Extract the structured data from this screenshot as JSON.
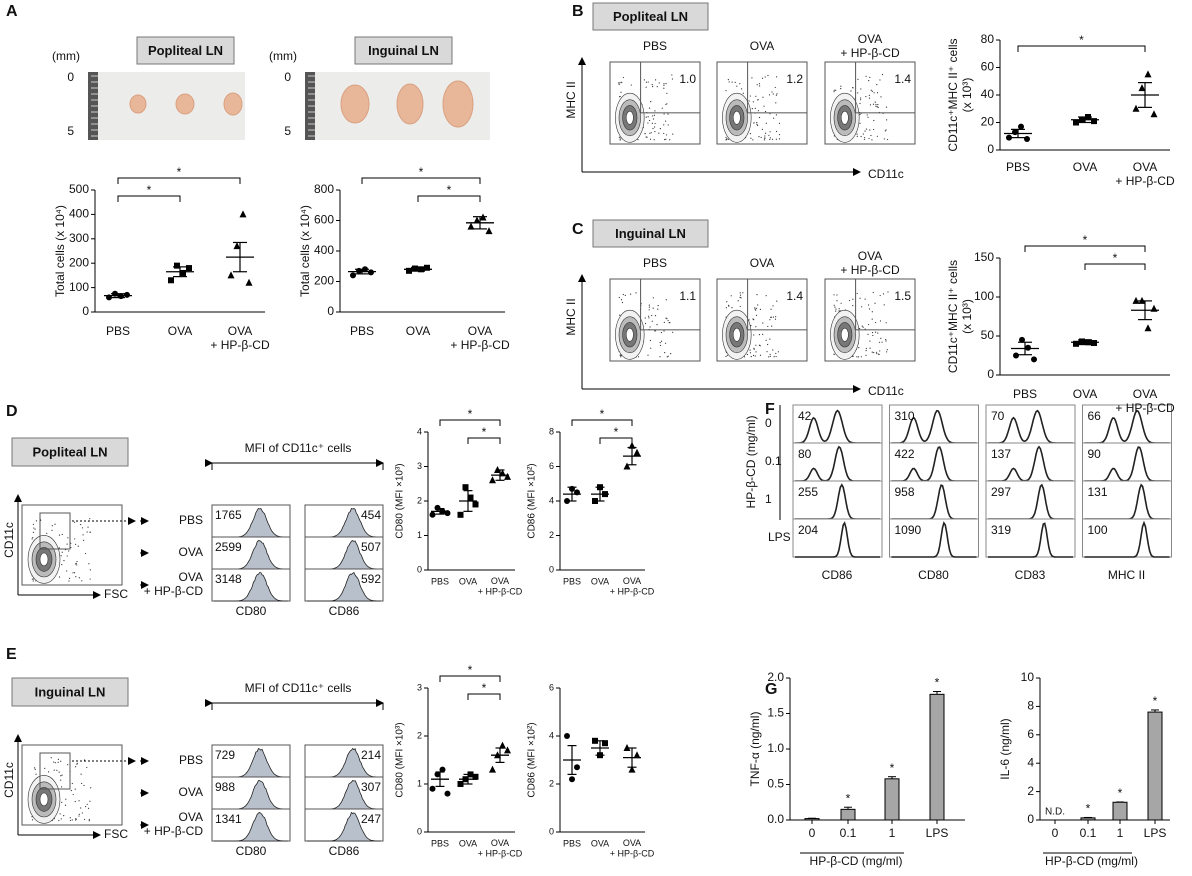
{
  "panel_labels": [
    "A",
    "B",
    "C",
    "D",
    "E",
    "F",
    "G"
  ],
  "A": {
    "images": [
      {
        "title": "Popliteal LN",
        "unit": "(mm)",
        "scale": [
          "0",
          "5"
        ]
      },
      {
        "title": "Inguinal LN",
        "unit": "(mm)",
        "scale": [
          "0",
          "5"
        ]
      }
    ]
  },
  "B": {
    "title": "Popliteal LN",
    "ylabel": "MHC II",
    "xlabel": "CD11c",
    "plots": [
      {
        "name": "PBS",
        "value": "1.0"
      },
      {
        "name": "OVA",
        "value": "1.2"
      },
      {
        "name": "OVA\n+ HP-β-CD",
        "value": "1.4"
      }
    ]
  },
  "C": {
    "title": "Inguinal LN",
    "ylabel": "MHC II",
    "xlabel": "CD11c",
    "plots": [
      {
        "name": "PBS",
        "value": "1.1"
      },
      {
        "name": "OVA",
        "value": "1.4"
      },
      {
        "name": "OVA\n+ HP-β-CD",
        "value": "1.5"
      }
    ]
  },
  "D": {
    "title": "Popliteal LN",
    "flow_axes": [
      "CD11c",
      "FSC"
    ],
    "mfi_title": "MFI of CD11c⁺ cells",
    "rows": [
      "PBS",
      "OVA",
      "OVA\n+ HP-β-CD"
    ],
    "columns": [
      {
        "name": "CD80",
        "values": [
          1765,
          2599,
          3148
        ]
      },
      {
        "name": "CD86",
        "values": [
          454,
          507,
          592
        ]
      }
    ]
  },
  "E": {
    "title": "Inguinal LN",
    "flow_axes": [
      "CD11c",
      "FSC"
    ],
    "mfi_title": "MFI of CD11c⁺ cells",
    "rows": [
      "PBS",
      "OVA",
      "OVA\n+ HP-β-CD"
    ],
    "columns": [
      {
        "name": "CD80",
        "values": [
          729,
          988,
          1341
        ]
      },
      {
        "name": "CD86",
        "values": [
          214,
          307,
          247
        ]
      }
    ]
  },
  "F": {
    "ylabel": "HP-β-CD (mg/ml)",
    "rows": [
      "0",
      "0.1",
      "1",
      "LPS"
    ],
    "columns": [
      {
        "name": "CD86",
        "values": [
          42,
          80,
          255,
          204
        ]
      },
      {
        "name": "CD80",
        "values": [
          310,
          422,
          958,
          1090
        ]
      },
      {
        "name": "CD83",
        "values": [
          70,
          137,
          297,
          319
        ]
      },
      {
        "name": "MHC II",
        "values": [
          66,
          90,
          131,
          100
        ]
      }
    ]
  },
  "chart_data": [
    {
      "type": "dot",
      "ylabel": "Total cells (x 10⁴)",
      "categories": [
        "PBS",
        "OVA",
        "OVA\n+ HP-β-CD"
      ],
      "markers": [
        "circle",
        "square",
        "triangle"
      ],
      "groups": [
        {
          "points": [
            60,
            75,
            65,
            70
          ],
          "mean": 67,
          "sem": 8
        },
        {
          "points": [
            130,
            190,
            160,
            180
          ],
          "mean": 165,
          "sem": 20
        },
        {
          "points": [
            150,
            270,
            400,
            120
          ],
          "mean": 225,
          "sem": 60
        }
      ],
      "ylim": [
        0,
        500
      ],
      "yticks": [
        0,
        100,
        200,
        300,
        400,
        500
      ],
      "significance": [
        {
          "from": 0,
          "to": 1,
          "label": "*"
        },
        {
          "from": 0,
          "to": 2,
          "label": "*"
        }
      ]
    },
    {
      "type": "dot",
      "ylabel": "Total cells (x 10⁴)",
      "categories": [
        "PBS",
        "OVA",
        "OVA\n+ HP-β-CD"
      ],
      "markers": [
        "circle",
        "square",
        "triangle"
      ],
      "groups": [
        {
          "points": [
            240,
            270,
            280,
            260
          ],
          "mean": 265,
          "sem": 15
        },
        {
          "points": [
            270,
            285,
            280,
            290
          ],
          "mean": 280,
          "sem": 12
        },
        {
          "points": [
            560,
            600,
            620,
            530
          ],
          "mean": 585,
          "sem": 40
        }
      ],
      "ylim": [
        0,
        800
      ],
      "yticks": [
        0,
        200,
        400,
        600,
        800
      ],
      "significance": [
        {
          "from": 1,
          "to": 2,
          "label": "*"
        },
        {
          "from": 0,
          "to": 2,
          "label": "*"
        }
      ]
    },
    {
      "type": "dot",
      "ylabel": "CD11c⁺MHC II⁺ cells\n(x 10³)",
      "categories": [
        "PBS",
        "OVA",
        "OVA\n+ HP-β-CD"
      ],
      "markers": [
        "circle",
        "square",
        "triangle"
      ],
      "groups": [
        {
          "points": [
            9,
            13,
            17,
            8
          ],
          "mean": 12,
          "sem": 3
        },
        {
          "points": [
            20,
            22,
            24,
            21
          ],
          "mean": 22,
          "sem": 2
        },
        {
          "points": [
            30,
            45,
            55,
            26
          ],
          "mean": 40,
          "sem": 9
        }
      ],
      "ylim": [
        0,
        80
      ],
      "yticks": [
        0,
        20,
        40,
        60,
        80
      ],
      "significance": [
        {
          "from": 0,
          "to": 2,
          "label": "*"
        }
      ]
    },
    {
      "type": "dot",
      "ylabel": "CD11c⁺MHC II⁺ cells\n(x 10³)",
      "categories": [
        "PBS",
        "OVA",
        "OVA\n+ HP-β-CD"
      ],
      "markers": [
        "circle",
        "square",
        "triangle"
      ],
      "groups": [
        {
          "points": [
            25,
            45,
            35,
            20
          ],
          "mean": 34,
          "sem": 8
        },
        {
          "points": [
            40,
            43,
            42,
            41
          ],
          "mean": 42,
          "sem": 3
        },
        {
          "points": [
            95,
            95,
            60,
            85
          ],
          "mean": 83,
          "sem": 12
        }
      ],
      "ylim": [
        0,
        150
      ],
      "yticks": [
        0,
        50,
        100,
        150
      ],
      "significance": [
        {
          "from": 1,
          "to": 2,
          "label": "*"
        },
        {
          "from": 0,
          "to": 2,
          "label": "*"
        }
      ]
    },
    {
      "type": "dot",
      "ylabel": "CD80 (MFI ×10³)",
      "categories": [
        "PBS",
        "OVA",
        "OVA\n+ HP-β-CD"
      ],
      "markers": [
        "circle",
        "square",
        "triangle"
      ],
      "groups": [
        {
          "points": [
            1.6,
            1.8,
            1.7,
            1.65
          ],
          "mean": 1.7,
          "sem": 0.08
        },
        {
          "points": [
            1.6,
            2.4,
            2.1,
            1.9
          ],
          "mean": 2.0,
          "sem": 0.3
        },
        {
          "points": [
            2.6,
            2.9,
            2.8,
            2.7
          ],
          "mean": 2.75,
          "sem": 0.15
        }
      ],
      "ylim": [
        0,
        4
      ],
      "yticks": [
        0,
        1,
        2,
        3,
        4
      ],
      "significance": [
        {
          "from": 1,
          "to": 2,
          "label": "*"
        },
        {
          "from": 0,
          "to": 2,
          "label": "*"
        }
      ]
    },
    {
      "type": "dot",
      "ylabel": "CD86 (MFI ×10²)",
      "categories": [
        "PBS",
        "OVA",
        "OVA\n+ HP-β-CD"
      ],
      "markers": [
        "circle",
        "square",
        "triangle"
      ],
      "groups": [
        {
          "points": [
            4,
            4.7,
            4.5
          ],
          "mean": 4.4,
          "sem": 0.4
        },
        {
          "points": [
            4,
            4.8,
            4.4
          ],
          "mean": 4.4,
          "sem": 0.4
        },
        {
          "points": [
            6,
            7.2,
            6.8
          ],
          "mean": 6.6,
          "sem": 0.5
        }
      ],
      "ylim": [
        0,
        8
      ],
      "yticks": [
        0,
        2,
        4,
        6,
        8
      ],
      "significance": [
        {
          "from": 1,
          "to": 2,
          "label": "*"
        },
        {
          "from": 0,
          "to": 2,
          "label": "*"
        }
      ]
    },
    {
      "type": "dot",
      "ylabel": "CD80 (MFI ×10³)",
      "categories": [
        "PBS",
        "OVA",
        "OVA\n+ HP-β-CD"
      ],
      "markers": [
        "circle",
        "square",
        "triangle"
      ],
      "groups": [
        {
          "points": [
            0.9,
            1.2,
            1.3,
            0.8
          ],
          "mean": 1.1,
          "sem": 0.15
        },
        {
          "points": [
            1.0,
            1.1,
            1.2,
            1.15
          ],
          "mean": 1.1,
          "sem": 0.1
        },
        {
          "points": [
            1.3,
            1.6,
            1.8,
            1.7
          ],
          "mean": 1.6,
          "sem": 0.15
        }
      ],
      "ylim": [
        0,
        3
      ],
      "yticks": [
        0,
        1,
        2,
        3
      ],
      "significance": [
        {
          "from": 1,
          "to": 2,
          "label": "*"
        },
        {
          "from": 0,
          "to": 2,
          "label": "*"
        }
      ]
    },
    {
      "type": "dot",
      "ylabel": "CD86 (MFI ×10²)",
      "categories": [
        "PBS",
        "OVA",
        "OVA\n+ HP-β-CD"
      ],
      "markers": [
        "circle",
        "square",
        "triangle"
      ],
      "groups": [
        {
          "points": [
            4,
            2.2,
            2.7
          ],
          "mean": 3.0,
          "sem": 0.6
        },
        {
          "points": [
            3.8,
            3.2,
            3.7
          ],
          "mean": 3.5,
          "sem": 0.3
        },
        {
          "points": [
            3.5,
            2.6,
            3.2
          ],
          "mean": 3.1,
          "sem": 0.4
        }
      ],
      "ylim": [
        0,
        6
      ],
      "yticks": [
        0,
        2,
        4,
        6
      ],
      "significance": []
    },
    {
      "type": "bar",
      "ylabel": "TNF-α (ng/ml)",
      "xlabel": "HP-β-CD (mg/ml)",
      "categories": [
        "0",
        "0.1",
        "1",
        "LPS"
      ],
      "values": [
        0.02,
        0.15,
        0.58,
        1.77
      ],
      "errors": [
        0.005,
        0.03,
        0.03,
        0.04
      ],
      "color": "#a6a6a6",
      "ylim": [
        0,
        2
      ],
      "yticks": [
        {
          "value": 0,
          "label": "0.0"
        },
        0.5,
        {
          "value": 1,
          "label": "1.0"
        },
        1.5,
        {
          "value": 2,
          "label": "2.0"
        }
      ],
      "annotations": [
        {
          "index": 1,
          "text": "*"
        },
        {
          "index": 2,
          "text": "*"
        },
        {
          "index": 3,
          "text": "*"
        }
      ]
    },
    {
      "type": "bar",
      "ylabel": "IL-6 (ng/ml)",
      "xlabel": "HP-β-CD (mg/ml)",
      "categories": [
        "0",
        "0.1",
        "1",
        "LPS"
      ],
      "values": [
        null,
        0.15,
        1.25,
        7.6
      ],
      "errors": [
        null,
        0.03,
        0.02,
        0.15
      ],
      "color": "#a6a6a6",
      "ylim": [
        0,
        10
      ],
      "yticks": [
        0,
        2,
        4,
        6,
        8,
        10
      ],
      "annotations": [
        {
          "index": 0,
          "text": "N.D."
        },
        {
          "index": 1,
          "text": "*"
        },
        {
          "index": 2,
          "text": "*"
        },
        {
          "index": 3,
          "text": "*"
        }
      ]
    }
  ]
}
